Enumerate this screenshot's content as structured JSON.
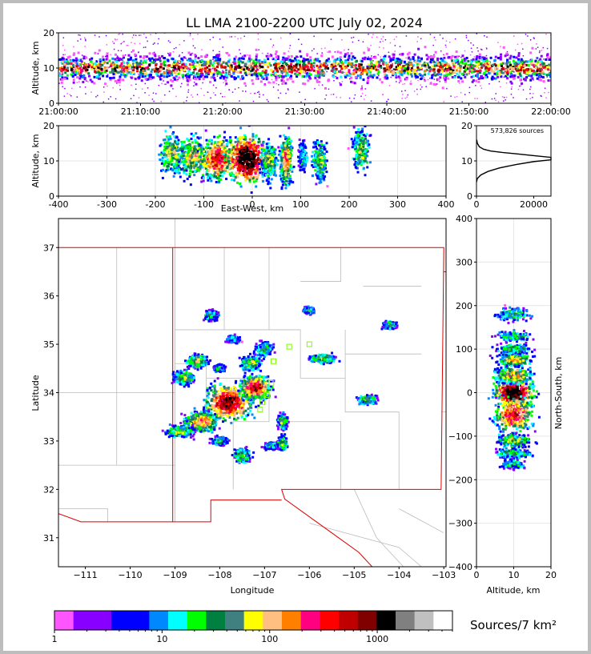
{
  "chart_data": [
    {
      "panel": "time-altitude",
      "type": "heatmap",
      "title": "LL LMA 2100-2200 UTC July 02, 2024",
      "ylabel": "Altitude, km",
      "ylim": [
        0,
        20
      ],
      "xlim": [
        "21:00:00",
        "22:00:00"
      ],
      "x_ticks": [
        "21:00:00",
        "21:10:00",
        "21:20:00",
        "21:30:00",
        "21:40:00",
        "21:50:00",
        "22:00:00"
      ],
      "y_ticks": [
        0,
        10,
        20
      ],
      "dense_band_km": [
        5,
        14
      ],
      "peak_altitude_km": 10
    },
    {
      "panel": "east-west-altitude",
      "type": "heatmap",
      "xlabel": "East-West, km",
      "ylabel": "Altitude, km",
      "xlim": [
        -400,
        400
      ],
      "ylim": [
        0,
        20
      ],
      "x_ticks": [
        -400,
        -300,
        -200,
        -100,
        0,
        100,
        200,
        300,
        400
      ],
      "y_ticks": [
        0,
        10,
        20
      ],
      "cells": [
        {
          "x": -165,
          "z": 12,
          "sx": 18,
          "sz": 4,
          "w": 1.4
        },
        {
          "x": -120,
          "z": 11,
          "sx": 22,
          "sz": 4,
          "w": 1.6
        },
        {
          "x": -70,
          "z": 10.5,
          "sx": 25,
          "sz": 4,
          "w": 2.3
        },
        {
          "x": -10,
          "z": 10.5,
          "sx": 28,
          "sz": 4.5,
          "w": 3.0
        },
        {
          "x": 35,
          "z": 10,
          "sx": 12,
          "sz": 3.5,
          "w": 1.4
        },
        {
          "x": 70,
          "z": 10,
          "sx": 8,
          "sz": 4.5,
          "w": 2.0
        },
        {
          "x": 105,
          "z": 11,
          "sx": 6,
          "sz": 3,
          "w": 0.8
        },
        {
          "x": 140,
          "z": 10,
          "sx": 10,
          "sz": 4,
          "w": 1.3
        },
        {
          "x": 225,
          "z": 13,
          "sx": 12,
          "sz": 4,
          "w": 1.3
        }
      ]
    },
    {
      "panel": "altitude-histogram",
      "type": "line",
      "annotation": "573,826 sources",
      "xlim": [
        0,
        26000
      ],
      "ylim": [
        0,
        20
      ],
      "x_ticks": [
        0,
        20000
      ],
      "y_ticks": [
        0,
        10,
        20
      ],
      "series": [
        {
          "x": [
            0,
            300,
            1500,
            4000,
            8000,
            14000,
            20000,
            26000,
            26000,
            20000,
            14000,
            9000,
            5000,
            2500,
            1000,
            300,
            80
          ],
          "y": [
            4,
            5,
            6,
            7,
            8,
            9,
            9.8,
            10.3,
            11,
            11.5,
            12,
            12.4,
            12.8,
            13.3,
            14,
            15,
            16
          ]
        }
      ]
    },
    {
      "panel": "plan-view",
      "type": "heatmap",
      "xlabel": "Longitude",
      "ylabel": "Latitude",
      "xlim": [
        -111.6,
        -102.95
      ],
      "ylim": [
        30.4,
        37.6
      ],
      "x_ticks": [
        -111,
        -110,
        -109,
        -108,
        -107,
        -106,
        -105,
        -104,
        -103
      ],
      "y_ticks": [
        31,
        32,
        33,
        34,
        35,
        36,
        37
      ],
      "cells": [
        {
          "lon": -107.8,
          "lat": 33.8,
          "sx": 0.35,
          "sy": 0.25,
          "w": 2.6
        },
        {
          "lon": -107.2,
          "lat": 34.1,
          "sx": 0.22,
          "sy": 0.16,
          "w": 2.4
        },
        {
          "lon": -108.4,
          "lat": 33.4,
          "sx": 0.25,
          "sy": 0.14,
          "w": 1.8
        },
        {
          "lon": -108.9,
          "lat": 33.2,
          "sx": 0.2,
          "sy": 0.08,
          "w": 1.3
        },
        {
          "lon": -108.8,
          "lat": 34.3,
          "sx": 0.15,
          "sy": 0.09,
          "w": 1.4
        },
        {
          "lon": -108.5,
          "lat": 34.65,
          "sx": 0.15,
          "sy": 0.09,
          "w": 1.5
        },
        {
          "lon": -107.3,
          "lat": 34.6,
          "sx": 0.15,
          "sy": 0.1,
          "w": 1.4
        },
        {
          "lon": -107.0,
          "lat": 34.9,
          "sx": 0.12,
          "sy": 0.1,
          "w": 1.1
        },
        {
          "lon": -106.6,
          "lat": 33.4,
          "sx": 0.07,
          "sy": 0.1,
          "w": 1.3
        },
        {
          "lon": -106.6,
          "lat": 32.95,
          "sx": 0.07,
          "sy": 0.1,
          "w": 1.3
        },
        {
          "lon": -106.85,
          "lat": 32.9,
          "sx": 0.1,
          "sy": 0.05,
          "w": 0.9
        },
        {
          "lon": -107.5,
          "lat": 32.7,
          "sx": 0.12,
          "sy": 0.1,
          "w": 1.3
        },
        {
          "lon": -108.0,
          "lat": 33.0,
          "sx": 0.12,
          "sy": 0.06,
          "w": 1.0
        },
        {
          "lon": -105.7,
          "lat": 34.7,
          "sx": 0.18,
          "sy": 0.06,
          "w": 1.4
        },
        {
          "lon": -104.7,
          "lat": 33.85,
          "sx": 0.14,
          "sy": 0.06,
          "w": 1.2
        },
        {
          "lon": -104.2,
          "lat": 35.4,
          "sx": 0.1,
          "sy": 0.05,
          "w": 1.1
        },
        {
          "lon": -108.2,
          "lat": 35.6,
          "sx": 0.1,
          "sy": 0.07,
          "w": 1.0
        },
        {
          "lon": -106.0,
          "lat": 35.7,
          "sx": 0.08,
          "sy": 0.05,
          "w": 0.9
        },
        {
          "lon": -107.7,
          "lat": 35.1,
          "sx": 0.1,
          "sy": 0.05,
          "w": 0.8
        },
        {
          "lon": -108.0,
          "lat": 34.5,
          "sx": 0.09,
          "sy": 0.05,
          "w": 0.8
        }
      ],
      "markers": [
        {
          "lon": -106.45,
          "lat": 34.95
        },
        {
          "lon": -106.0,
          "lat": 35.0
        },
        {
          "lon": -106.8,
          "lat": 34.65
        },
        {
          "lon": -106.85,
          "lat": 34.2
        },
        {
          "lon": -106.95,
          "lat": 33.95
        },
        {
          "lon": -107.05,
          "lat": 33.8
        },
        {
          "lon": -107.1,
          "lat": 33.65
        }
      ]
    },
    {
      "panel": "altitude-north-south",
      "type": "heatmap",
      "xlabel": "Altitude, km",
      "ylabel": "North-South, km",
      "xlim": [
        0,
        20
      ],
      "ylim": [
        -400,
        400
      ],
      "x_ticks": [
        0,
        10,
        20
      ],
      "y_ticks": [
        -400,
        -300,
        -200,
        -100,
        0,
        100,
        200,
        300,
        400
      ],
      "cells": [
        {
          "z": 10,
          "y": 0,
          "sz": 3.5,
          "sy": 22,
          "w": 3.0
        },
        {
          "z": 10,
          "y": -50,
          "sz": 3.5,
          "sy": 28,
          "w": 2.2
        },
        {
          "z": 10,
          "y": 40,
          "sz": 3.5,
          "sy": 14,
          "w": 1.7
        },
        {
          "z": 10,
          "y": 75,
          "sz": 3,
          "sy": 10,
          "w": 1.6
        },
        {
          "z": 10,
          "y": 100,
          "sz": 3,
          "sy": 8,
          "w": 1.1
        },
        {
          "z": 10,
          "y": 130,
          "sz": 3,
          "sy": 8,
          "w": 1.0
        },
        {
          "z": 10,
          "y": 180,
          "sz": 3,
          "sy": 10,
          "w": 1.0
        },
        {
          "z": 10,
          "y": -110,
          "sz": 3,
          "sy": 10,
          "w": 1.4
        },
        {
          "z": 10,
          "y": -140,
          "sz": 3,
          "sy": 8,
          "w": 1.1
        },
        {
          "z": 10,
          "y": -165,
          "sz": 2.5,
          "sy": 8,
          "w": 0.7
        }
      ]
    },
    {
      "panel": "colorbar",
      "type": "legend",
      "label": "Sources/7 km²",
      "scale": "log",
      "range": [
        1,
        5000
      ],
      "tick_labels": [
        "1",
        "10",
        "100",
        "1000"
      ],
      "colors": [
        "#ff55ff",
        "#8800ff",
        "#8800ff",
        "#0000ff",
        "#0000ff",
        "#0088ff",
        "#00ffff",
        "#00ff00",
        "#008040",
        "#408080",
        "#ffff00",
        "#ffbf80",
        "#ff8000",
        "#ff0080",
        "#ff0000",
        "#c00000",
        "#800000",
        "#000000",
        "#808080",
        "#c0c0c0",
        "#ffffff"
      ]
    }
  ],
  "labels": {
    "title": "LL LMA 2100-2200 UTC July 02, 2024",
    "altitude_axis": "Altitude, km",
    "ew_axis": "East-West, km",
    "lon_axis": "Longitude",
    "lat_axis": "Latitude",
    "ns_axis": "North-South, km",
    "side_x_axis": "Altitude, km",
    "histogram_note": "573,826 sources",
    "colorbar_unit": "Sources/7 km²"
  }
}
